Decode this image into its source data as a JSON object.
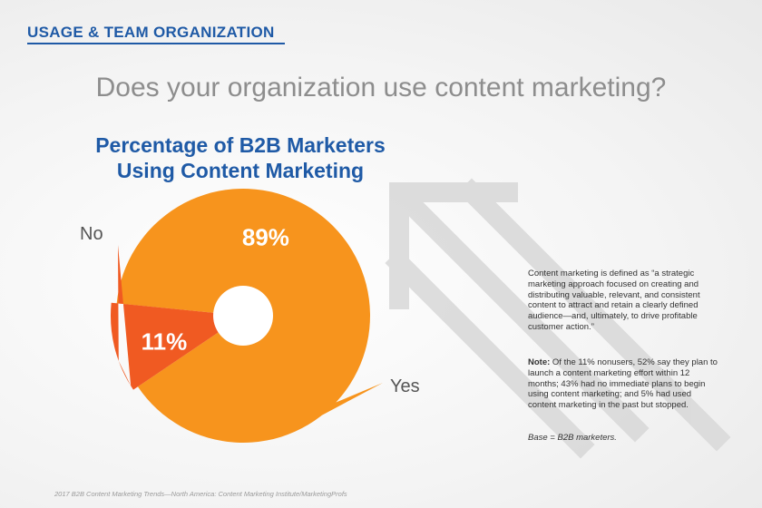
{
  "header": {
    "section_tag": "USAGE & TEAM ORGANIZATION",
    "question": "Does your organization use content marketing?"
  },
  "chart_data": {
    "type": "pie",
    "variant": "donut",
    "title_lines": [
      "Percentage of B2B Marketers",
      "Using Content Marketing"
    ],
    "categories": [
      "Yes",
      "No"
    ],
    "values": [
      89,
      11
    ],
    "value_labels": [
      "89%",
      "11%"
    ],
    "colors": [
      "#f7941d",
      "#f05a22"
    ],
    "legend": "callout labels"
  },
  "sidebar": {
    "definition": "Content marketing is defined as “a strategic marketing approach focused on creating and distributing valuable, relevant, and consistent content to attract and retain a clearly defined audience—and, ultimately, to drive profitable customer action.”",
    "note_label": "Note:",
    "note_text": " Of the 11% nonusers, 52% say they plan to launch a content marketing effort within 12 months; 43% had no immediate plans to begin using content marketing; and 5% had used content marketing in the past but stopped.",
    "base": "Base = B2B marketers."
  },
  "footer": {
    "source": "2017 B2B Content Marketing Trends—North America: Content Marketing Institute/MarketingProfs"
  },
  "decoration": {
    "arrow_icon": "arrow-up-left-icon",
    "arrow_color": "#d9d9d9"
  }
}
